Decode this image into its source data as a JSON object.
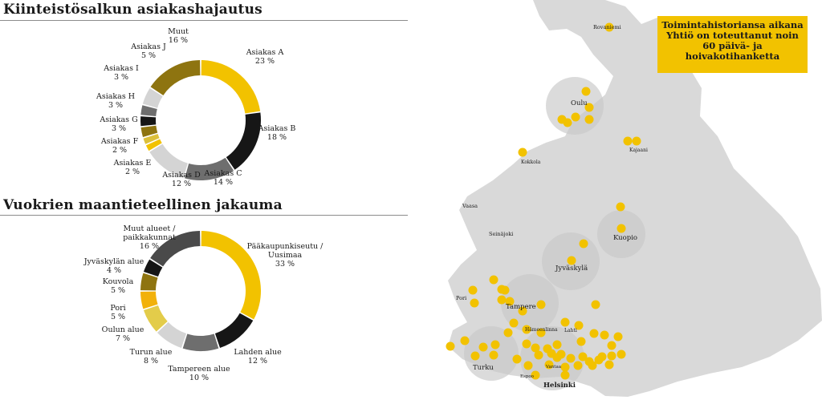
{
  "colors": {
    "yellow": "#f2c200",
    "black": "#161616",
    "dark_gray": "#6e6e6e",
    "light_gray": "#d4d4d4",
    "olive": "#8e7410",
    "map_land": "#d9d9d9"
  },
  "callout": {
    "lines": [
      "Toimintahistoriansa aikana",
      "Yhtiö on toteuttanut noin",
      "60 päivä- ja",
      "hoivakotihanketta"
    ]
  },
  "map": {
    "cities": {
      "rovaniemi": "Rovaniemi",
      "oulu": "Oulu",
      "kajaani": "Kajaani",
      "kokkola": "Kokkola",
      "vaasa": "Vaasa",
      "seinajoki": "Seinäjoki",
      "kuopio": "Kuopio",
      "jyvaskyla": "Jyväskylä",
      "pori": "Pori",
      "tampere": "Tampere",
      "hameenlinna": "Hämeenlinna",
      "lahti": "Lahti",
      "turku": "Turku",
      "vantaa": "Vantaa",
      "espoo": "Espoo",
      "helsinki": "Helsinki"
    }
  },
  "chart_data": [
    {
      "type": "pie",
      "title": "Kiinteistösalkun asiakashajautus",
      "slices": [
        {
          "name": "Asiakas A",
          "value": 23,
          "label": "23 %",
          "color": "#f2c200"
        },
        {
          "name": "Asiakas B",
          "value": 18,
          "label": "18 %",
          "color": "#161616"
        },
        {
          "name": "Asiakas C",
          "value": 14,
          "label": "14 %",
          "color": "#6e6e6e"
        },
        {
          "name": "Asiakas D",
          "value": 12,
          "label": "12 %",
          "color": "#d4d4d4"
        },
        {
          "name": "Asiakas E",
          "value": 2,
          "label": "2 %",
          "color": "#f2c200"
        },
        {
          "name": "Asiakas F",
          "value": 2,
          "label": "2 %",
          "color": "#dcc03a"
        },
        {
          "name": "Asiakas G",
          "value": 3,
          "label": "3 %",
          "color": "#8e7410"
        },
        {
          "name": "Asiakas H",
          "value": 3,
          "label": "3 %",
          "color": "#161616"
        },
        {
          "name": "Asiakas I",
          "value": 3,
          "label": "3 %",
          "color": "#6e6e6e"
        },
        {
          "name": "Asiakas J",
          "value": 5,
          "label": "5 %",
          "color": "#d4d4d4"
        },
        {
          "name": "Muut",
          "value": 16,
          "label": "16 %",
          "color": "#8e7410"
        }
      ]
    },
    {
      "type": "pie",
      "title": "Vuokrien maantieteellinen jakauma",
      "slices": [
        {
          "name": "Pääkaupunkiseutu / Uusimaa",
          "value": 33,
          "label": "33 %",
          "color": "#f2c200"
        },
        {
          "name": "Lahden alue",
          "value": 12,
          "label": "12 %",
          "color": "#161616"
        },
        {
          "name": "Tampereen alue",
          "value": 10,
          "label": "10 %",
          "color": "#6e6e6e"
        },
        {
          "name": "Turun alue",
          "value": 8,
          "label": "8 %",
          "color": "#d4d4d4"
        },
        {
          "name": "Oulun alue",
          "value": 7,
          "label": "7 %",
          "color": "#e3cc4a"
        },
        {
          "name": "Pori",
          "value": 5,
          "label": "5 %",
          "color": "#f2b10a"
        },
        {
          "name": "Kouvola",
          "value": 5,
          "label": "5 %",
          "color": "#8e7410"
        },
        {
          "name": "Jyväskylän alue",
          "value": 4,
          "label": "4 %",
          "color": "#161616"
        },
        {
          "name": "Muut alueet / paikkakunnat",
          "value": 16,
          "label": "16 %",
          "color": "#4a4a4a"
        }
      ]
    }
  ]
}
